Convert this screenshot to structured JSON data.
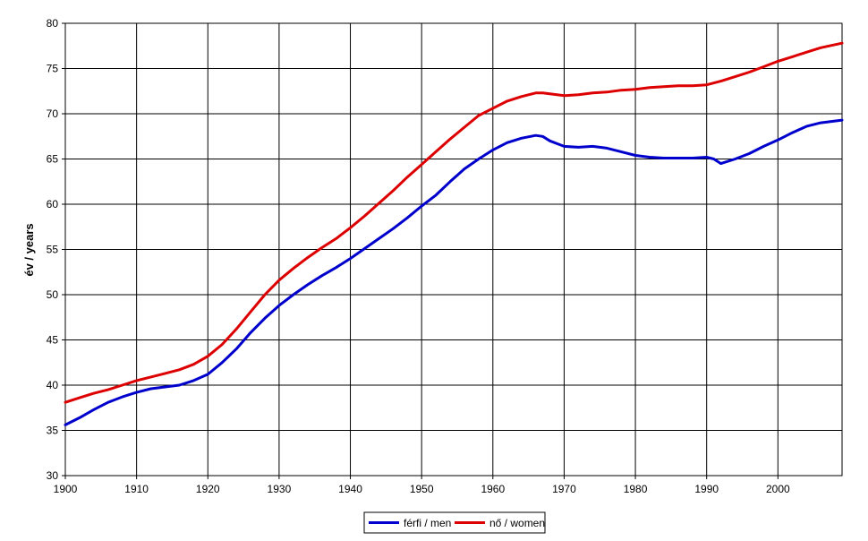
{
  "chart_data": {
    "type": "line",
    "xlabel": "",
    "ylabel": "év / years",
    "xlim": [
      1900,
      2009
    ],
    "ylim": [
      30,
      80
    ],
    "x_ticks": [
      "1900",
      "1910",
      "1920",
      "1930",
      "1940",
      "1950",
      "1960",
      "1970",
      "1980",
      "1990",
      "2000"
    ],
    "y_ticks": [
      "30",
      "35",
      "40",
      "45",
      "50",
      "55",
      "60",
      "65",
      "70",
      "75",
      "80"
    ],
    "grid": true,
    "legend_position": "bottom",
    "series": [
      {
        "name": "férfi / men",
        "color": "#0000cc",
        "points": [
          [
            1900,
            35.6
          ],
          [
            1902,
            36.4
          ],
          [
            1904,
            37.3
          ],
          [
            1906,
            38.1
          ],
          [
            1908,
            38.7
          ],
          [
            1910,
            39.2
          ],
          [
            1912,
            39.6
          ],
          [
            1914,
            39.8
          ],
          [
            1916,
            40.0
          ],
          [
            1918,
            40.5
          ],
          [
            1920,
            41.2
          ],
          [
            1922,
            42.5
          ],
          [
            1924,
            44.0
          ],
          [
            1926,
            45.8
          ],
          [
            1928,
            47.4
          ],
          [
            1930,
            48.8
          ],
          [
            1932,
            50.0
          ],
          [
            1934,
            51.1
          ],
          [
            1936,
            52.1
          ],
          [
            1938,
            53.0
          ],
          [
            1940,
            54.0
          ],
          [
            1942,
            55.1
          ],
          [
            1944,
            56.2
          ],
          [
            1946,
            57.3
          ],
          [
            1948,
            58.5
          ],
          [
            1950,
            59.8
          ],
          [
            1952,
            61.0
          ],
          [
            1954,
            62.5
          ],
          [
            1956,
            63.9
          ],
          [
            1958,
            65.0
          ],
          [
            1960,
            66.0
          ],
          [
            1962,
            66.8
          ],
          [
            1964,
            67.3
          ],
          [
            1966,
            67.6
          ],
          [
            1967,
            67.5
          ],
          [
            1968,
            67.0
          ],
          [
            1970,
            66.4
          ],
          [
            1972,
            66.3
          ],
          [
            1974,
            66.4
          ],
          [
            1976,
            66.2
          ],
          [
            1978,
            65.8
          ],
          [
            1980,
            65.4
          ],
          [
            1982,
            65.2
          ],
          [
            1984,
            65.1
          ],
          [
            1986,
            65.1
          ],
          [
            1988,
            65.1
          ],
          [
            1990,
            65.2
          ],
          [
            1991,
            65.0
          ],
          [
            1992,
            64.5
          ],
          [
            1994,
            65.0
          ],
          [
            1996,
            65.6
          ],
          [
            1998,
            66.4
          ],
          [
            2000,
            67.1
          ],
          [
            2002,
            67.9
          ],
          [
            2004,
            68.6
          ],
          [
            2006,
            69.0
          ],
          [
            2009,
            69.3
          ]
        ]
      },
      {
        "name": "nő / women",
        "color": "#dd0000",
        "points": [
          [
            1900,
            38.1
          ],
          [
            1902,
            38.6
          ],
          [
            1904,
            39.1
          ],
          [
            1906,
            39.5
          ],
          [
            1908,
            40.0
          ],
          [
            1910,
            40.5
          ],
          [
            1912,
            40.9
          ],
          [
            1914,
            41.3
          ],
          [
            1916,
            41.7
          ],
          [
            1918,
            42.3
          ],
          [
            1920,
            43.2
          ],
          [
            1922,
            44.5
          ],
          [
            1924,
            46.2
          ],
          [
            1926,
            48.1
          ],
          [
            1928,
            50.0
          ],
          [
            1930,
            51.6
          ],
          [
            1932,
            52.9
          ],
          [
            1934,
            54.1
          ],
          [
            1936,
            55.2
          ],
          [
            1938,
            56.2
          ],
          [
            1940,
            57.4
          ],
          [
            1942,
            58.7
          ],
          [
            1944,
            60.1
          ],
          [
            1946,
            61.5
          ],
          [
            1948,
            63.0
          ],
          [
            1950,
            64.4
          ],
          [
            1952,
            65.8
          ],
          [
            1954,
            67.2
          ],
          [
            1956,
            68.5
          ],
          [
            1958,
            69.8
          ],
          [
            1960,
            70.6
          ],
          [
            1962,
            71.4
          ],
          [
            1964,
            71.9
          ],
          [
            1966,
            72.3
          ],
          [
            1967,
            72.3
          ],
          [
            1968,
            72.2
          ],
          [
            1970,
            72.0
          ],
          [
            1972,
            72.1
          ],
          [
            1974,
            72.3
          ],
          [
            1976,
            72.4
          ],
          [
            1978,
            72.6
          ],
          [
            1980,
            72.7
          ],
          [
            1982,
            72.9
          ],
          [
            1984,
            73.0
          ],
          [
            1986,
            73.1
          ],
          [
            1988,
            73.1
          ],
          [
            1990,
            73.2
          ],
          [
            1992,
            73.6
          ],
          [
            1994,
            74.1
          ],
          [
            1996,
            74.6
          ],
          [
            1998,
            75.2
          ],
          [
            2000,
            75.8
          ],
          [
            2002,
            76.3
          ],
          [
            2004,
            76.8
          ],
          [
            2006,
            77.3
          ],
          [
            2009,
            77.8
          ]
        ]
      }
    ]
  }
}
